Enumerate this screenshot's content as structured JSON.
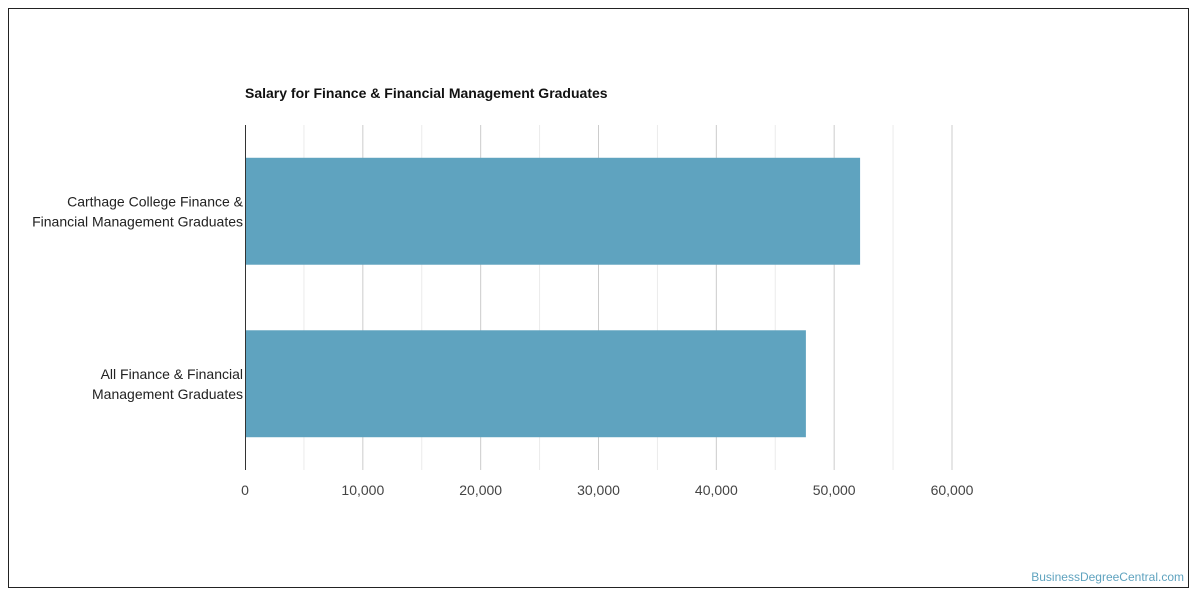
{
  "chart_data": {
    "type": "bar",
    "orientation": "horizontal",
    "title": "Salary for Finance & Financial Management Graduates",
    "xlabel": "",
    "ylabel": "",
    "categories": [
      [
        "Carthage College Finance &",
        "Financial Management Graduates"
      ],
      [
        "All Finance & Financial",
        "Management Graduates"
      ]
    ],
    "values": [
      52200,
      47600
    ],
    "xlim": [
      0,
      60000
    ],
    "xticks": [
      0,
      10000,
      20000,
      30000,
      40000,
      50000,
      60000
    ],
    "xtick_labels": [
      "0",
      "10,000",
      "20,000",
      "30,000",
      "40,000",
      "50,000",
      "60,000"
    ],
    "grid": true,
    "legend": "none",
    "bar_color": "#5fa3bf",
    "gridline_color": "#cccccc"
  },
  "source": {
    "label": "BusinessDegreeCentral.com",
    "color": "#5fa3bf"
  }
}
